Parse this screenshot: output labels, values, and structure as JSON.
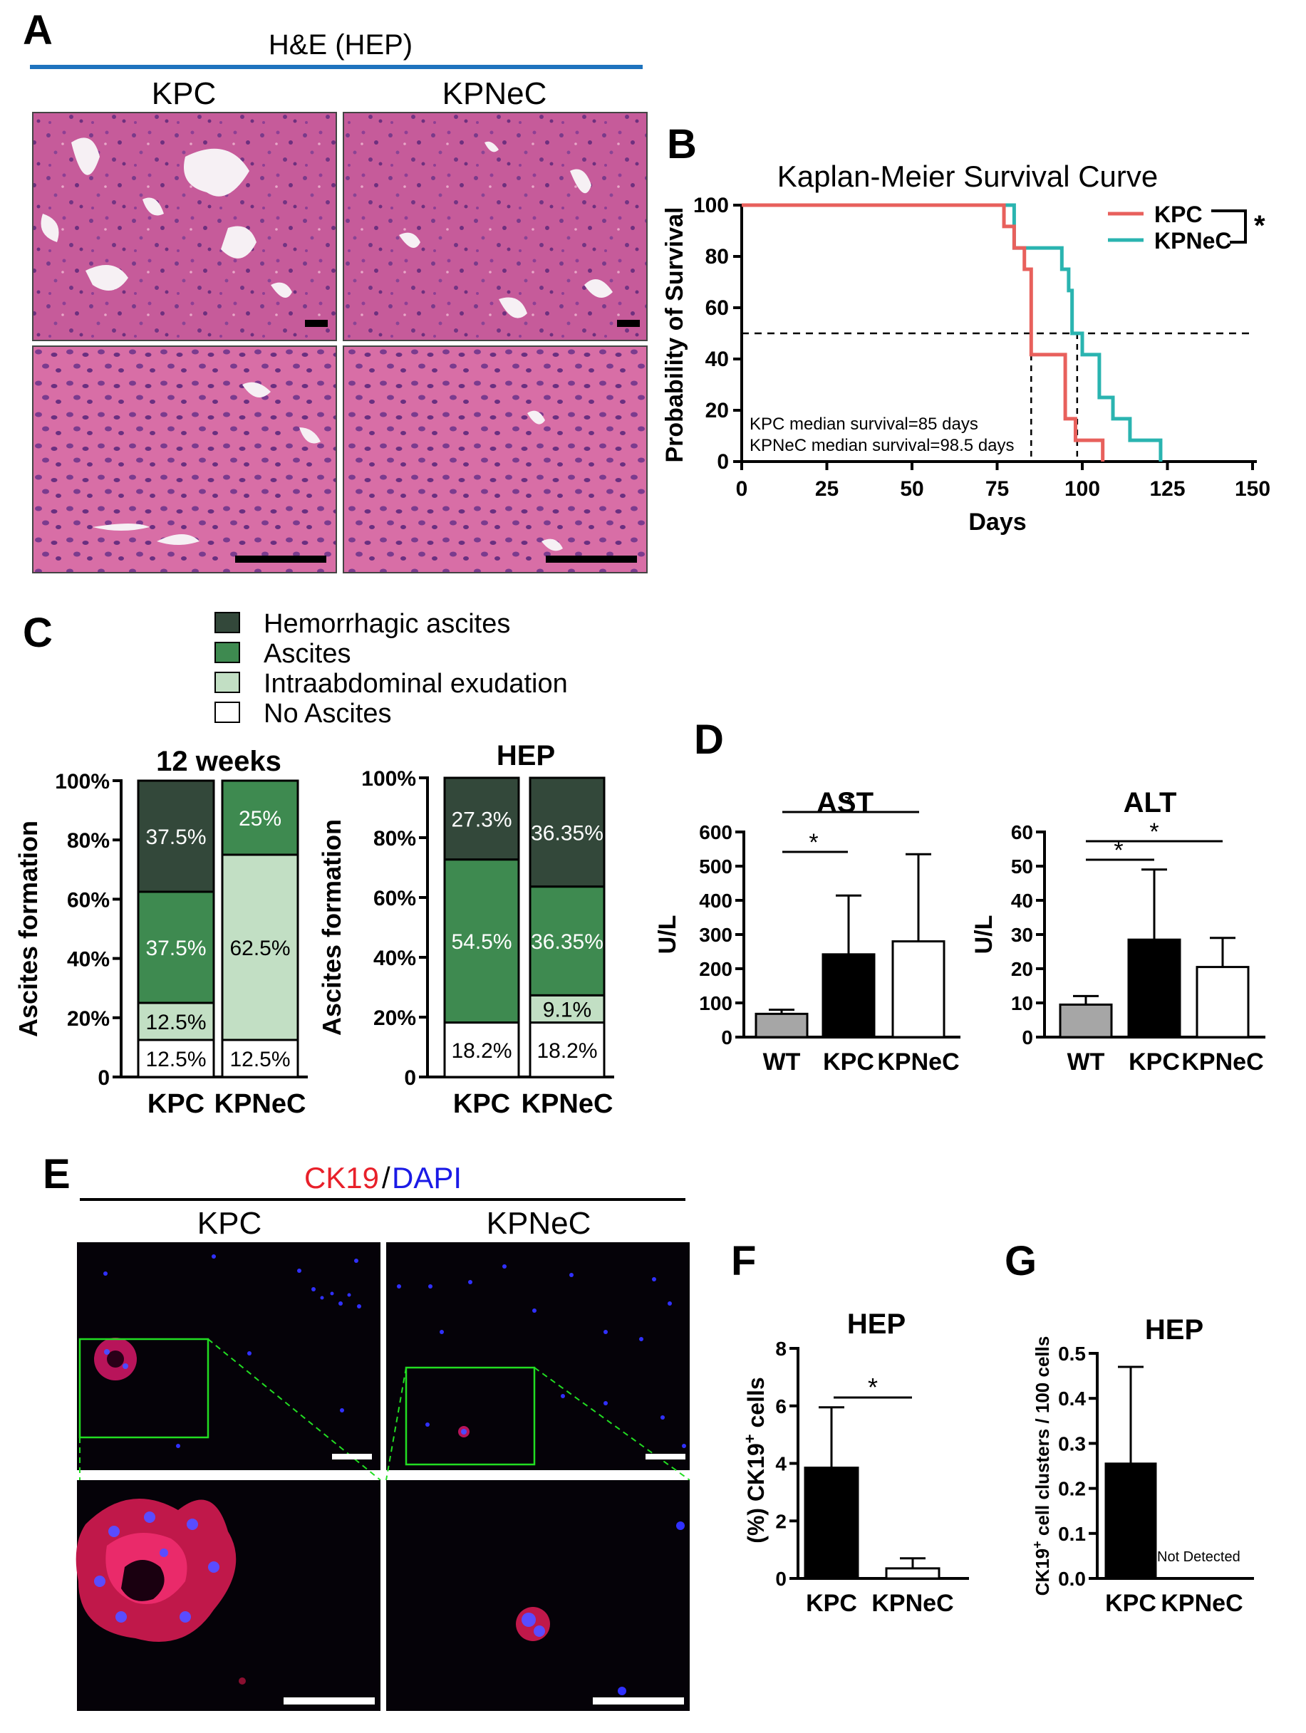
{
  "colors": {
    "kpc": "#e8605c",
    "kpnec": "#2ab4b0",
    "hemorrhagic": "#33483a",
    "ascites": "#3e8a50",
    "exudation": "#c2dfc4",
    "none": "#ffffff",
    "wt_bar": "#a6a6a6",
    "divider": "#1e73be",
    "ck19": "#e8202a",
    "dapi": "#1a1ae6",
    "zoom_box": "#22dd22"
  },
  "panelA": {
    "label": "A",
    "title": "H&E (HEP)",
    "col_labels": [
      "KPC",
      "KPNeC"
    ]
  },
  "panelB": {
    "label": "B",
    "chart_data": {
      "type": "line",
      "title": "Kaplan-Meier Survival Curve",
      "xlabel": "Days",
      "ylabel": "Probability of Survival",
      "xlim": [
        0,
        150
      ],
      "ylim": [
        0,
        100
      ],
      "xticks": [
        "0",
        "25",
        "50",
        "75",
        "100",
        "125",
        "150"
      ],
      "yticks": [
        "0",
        "20",
        "40",
        "60",
        "80",
        "100"
      ],
      "reference_line": 50,
      "series": [
        {
          "name": "KPC",
          "x": [
            0,
            75,
            77,
            78,
            80,
            81,
            83,
            85,
            91,
            95,
            97,
            98,
            106
          ],
          "y": [
            100,
            100,
            91.7,
            91.7,
            83.3,
            83.3,
            75,
            41.7,
            41.7,
            16.7,
            16.7,
            8.3,
            0
          ],
          "median": 85
        },
        {
          "name": "KPNeC",
          "x": [
            0,
            75,
            77,
            80,
            92,
            94,
            96,
            97,
            100,
            105,
            109,
            114,
            118,
            123
          ],
          "y": [
            100,
            100,
            100,
            83.3,
            83.3,
            75,
            66.7,
            50,
            41.7,
            25,
            16.7,
            8.3,
            8.3,
            0
          ],
          "median": 98.5
        }
      ],
      "significance": "*",
      "annotations": [
        "KPC median survival=85 days",
        "KPNeC median survival=98.5 days"
      ]
    }
  },
  "panelC": {
    "label": "C",
    "legend": [
      "Hemorrhagic ascites",
      "Ascites",
      "Intraabdominal exudation",
      "No Ascites"
    ],
    "chart_data": [
      {
        "type": "bar",
        "stacked": true,
        "title": "12 weeks",
        "ylabel": "Ascites formation",
        "yticks": [
          "0",
          "20%",
          "40%",
          "60%",
          "80%",
          "100%"
        ],
        "categories": [
          "KPC",
          "KPNeC"
        ],
        "series": [
          {
            "name": "No Ascites",
            "values": [
              12.5,
              12.5
            ],
            "labels": [
              "12.5%",
              "12.5%"
            ]
          },
          {
            "name": "Intraabdominal exudation",
            "values": [
              12.5,
              62.5
            ],
            "labels": [
              "12.5%",
              "62.5%"
            ]
          },
          {
            "name": "Ascites",
            "values": [
              37.5,
              25
            ],
            "labels": [
              "37.5%",
              "25%"
            ]
          },
          {
            "name": "Hemorrhagic ascites",
            "values": [
              37.5,
              0
            ],
            "labels": [
              "37.5%",
              ""
            ]
          }
        ]
      },
      {
        "type": "bar",
        "stacked": true,
        "title": "HEP",
        "ylabel": "Ascites formation",
        "yticks": [
          "0",
          "20%",
          "40%",
          "60%",
          "80%",
          "100%"
        ],
        "categories": [
          "KPC",
          "KPNeC"
        ],
        "series": [
          {
            "name": "No Ascites",
            "values": [
              18.2,
              18.2
            ],
            "labels": [
              "18.2%",
              "18.2%"
            ]
          },
          {
            "name": "Intraabdominal exudation",
            "values": [
              0,
              9.1
            ],
            "labels": [
              "",
              "9.1%"
            ]
          },
          {
            "name": "Ascites",
            "values": [
              54.5,
              36.35
            ],
            "labels": [
              "54.5%",
              "36.35%"
            ]
          },
          {
            "name": "Hemorrhagic ascites",
            "values": [
              27.3,
              36.35
            ],
            "labels": [
              "27.3%",
              "36.35%"
            ]
          }
        ]
      }
    ]
  },
  "panelD": {
    "label": "D",
    "chart_data": [
      {
        "type": "bar",
        "title": "AST",
        "ylabel": "U/L",
        "categories": [
          "WT",
          "KPC",
          "KPNeC"
        ],
        "values": [
          68,
          242,
          280
        ],
        "errors": [
          12,
          172,
          255
        ],
        "ylim": [
          0,
          600
        ],
        "yticks": [
          "0",
          "100",
          "200",
          "300",
          "400",
          "500",
          "600"
        ],
        "significance": [
          {
            "pair": [
              "WT",
              "KPC"
            ],
            "label": "*"
          },
          {
            "pair": [
              "WT",
              "KPNeC"
            ],
            "label": "*"
          }
        ]
      },
      {
        "type": "bar",
        "title": "ALT",
        "ylabel": "U/L",
        "categories": [
          "WT",
          "KPC",
          "KPNeC"
        ],
        "values": [
          9.5,
          28.5,
          20.5
        ],
        "errors": [
          2.5,
          20.5,
          8.5
        ],
        "ylim": [
          0,
          60
        ],
        "yticks": [
          "0",
          "10",
          "20",
          "30",
          "40",
          "50",
          "60"
        ],
        "significance": [
          {
            "pair": [
              "WT",
              "KPC"
            ],
            "label": "*"
          },
          {
            "pair": [
              "WT",
              "KPNeC"
            ],
            "label": "*"
          }
        ]
      }
    ]
  },
  "panelE": {
    "label": "E",
    "title_part1": "CK19",
    "title_sep": "/",
    "title_part2": "DAPI",
    "col_labels": [
      "KPC",
      "KPNeC"
    ]
  },
  "panelF": {
    "label": "F",
    "chart_data": {
      "type": "bar",
      "title": "HEP",
      "ylabel_prefix": "(%) CK19",
      "ylabel_sup": "+",
      "ylabel_suffix": " cells",
      "categories": [
        "KPC",
        "KPNeC"
      ],
      "values": [
        3.85,
        0.35
      ],
      "errors": [
        2.1,
        0.35
      ],
      "ylim": [
        0,
        8
      ],
      "yticks": [
        "0",
        "2",
        "4",
        "6",
        "8"
      ],
      "significance": "*"
    }
  },
  "panelG": {
    "label": "G",
    "chart_data": {
      "type": "bar",
      "title": "HEP",
      "ylabel_prefix": "CK19",
      "ylabel_sup": "+",
      "ylabel_suffix": " cell clusters / 100 cells",
      "categories": [
        "KPC",
        "KPNeC"
      ],
      "values": [
        0.255,
        0
      ],
      "errors": [
        0.215,
        0
      ],
      "ylim": [
        0,
        0.5
      ],
      "yticks": [
        "0.0",
        "0.1",
        "0.2",
        "0.3",
        "0.4",
        "0.5"
      ],
      "annotation": "Not Detected"
    }
  }
}
